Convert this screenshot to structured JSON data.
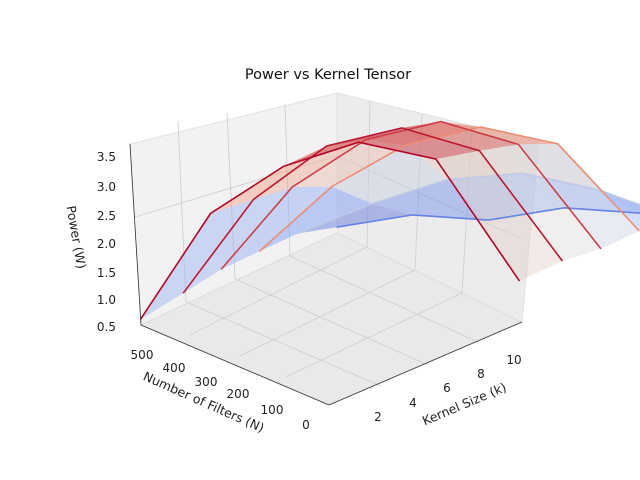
{
  "chart_data": {
    "type": "surface3d",
    "title": "Power vs Kernel Tensor",
    "xlabel": "Kernel Size (k)",
    "ylabel": "Number of Filters (N)",
    "zlabel": "Power (W)",
    "x_ticks": [
      "2",
      "4",
      "6",
      "8",
      "10"
    ],
    "y_ticks": [
      "0",
      "100",
      "200",
      "300",
      "400",
      "500"
    ],
    "z_ticks": [
      "0.5",
      "1.0",
      "1.5",
      "2.0",
      "2.5",
      "3.0",
      "3.5"
    ],
    "xlim": [
      1,
      11
    ],
    "ylim": [
      0,
      512
    ],
    "zlim": [
      0.5,
      3.6
    ],
    "colormap": "coolwarm",
    "grid": true,
    "x": [
      1,
      3,
      5,
      7,
      9,
      11
    ],
    "y": [
      0,
      100,
      200,
      300,
      400,
      512
    ],
    "z": [
      [
        0.6,
        0.8,
        0.7,
        0.9,
        0.8,
        1.0
      ],
      [
        0.8,
        1.3,
        1.7,
        1.8,
        1.5,
        1.0
      ],
      [
        0.8,
        1.9,
        2.6,
        2.9,
        2.6,
        1.1
      ],
      [
        0.8,
        2.2,
        3.0,
        3.3,
        2.9,
        1.1
      ],
      [
        0.7,
        2.3,
        3.2,
        3.5,
        3.1,
        1.2
      ],
      [
        0.6,
        2.4,
        3.2,
        3.6,
        3.3,
        1.2
      ]
    ]
  }
}
